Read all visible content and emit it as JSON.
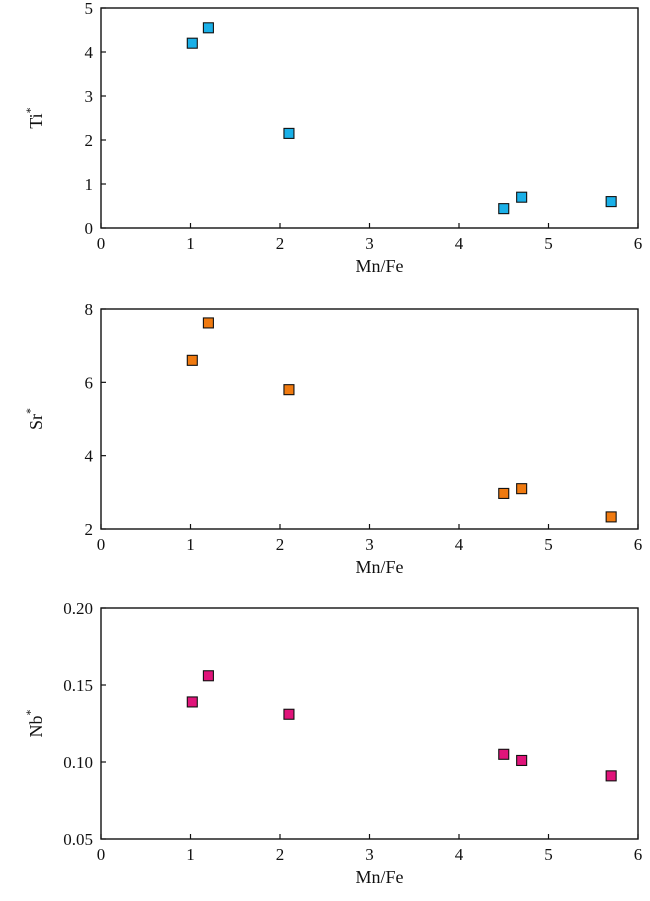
{
  "chart_data": [
    {
      "type": "scatter",
      "xlabel": "Mn/Fe",
      "ylabel": "Ti",
      "ylabel_sup": "*",
      "xlim": [
        0,
        6
      ],
      "ylim": [
        0,
        5
      ],
      "xticks": [
        0,
        1,
        2,
        3,
        4,
        5,
        6
      ],
      "yticks": [
        0,
        1,
        2,
        3,
        4,
        5
      ],
      "ytick_labels": [
        "0",
        "1",
        "2",
        "3",
        "4",
        "5"
      ],
      "marker": "square",
      "color": "#1ab0e8",
      "x": [
        1.02,
        1.2,
        2.1,
        4.5,
        4.7,
        5.7
      ],
      "y": [
        4.2,
        4.55,
        2.15,
        0.44,
        0.7,
        0.6
      ]
    },
    {
      "type": "scatter",
      "xlabel": "Mn/Fe",
      "ylabel": "Sr",
      "ylabel_sup": "*",
      "xlim": [
        0,
        6
      ],
      "ylim": [
        2,
        8
      ],
      "xticks": [
        0,
        1,
        2,
        3,
        4,
        5,
        6
      ],
      "yticks": [
        2,
        4,
        6,
        8
      ],
      "ytick_labels": [
        "2",
        "4",
        "6",
        "8"
      ],
      "marker": "square",
      "color": "#f07a10",
      "x": [
        1.02,
        1.2,
        2.1,
        4.5,
        4.7,
        5.7
      ],
      "y": [
        6.6,
        7.62,
        5.8,
        2.97,
        3.1,
        2.33
      ]
    },
    {
      "type": "scatter",
      "xlabel": "Mn/Fe",
      "ylabel": "Nb",
      "ylabel_sup": "*",
      "xlim": [
        0,
        6
      ],
      "ylim": [
        0.05,
        0.2
      ],
      "xticks": [
        0,
        1,
        2,
        3,
        4,
        5,
        6
      ],
      "yticks": [
        0.05,
        0.1,
        0.15,
        0.2
      ],
      "ytick_labels": [
        "0.05",
        "0.10",
        "0.15",
        "0.20"
      ],
      "marker": "square",
      "color": "#e0147a",
      "x": [
        1.02,
        1.2,
        2.1,
        4.5,
        4.7,
        5.7
      ],
      "y": [
        0.139,
        0.156,
        0.131,
        0.105,
        0.101,
        0.091
      ]
    }
  ]
}
